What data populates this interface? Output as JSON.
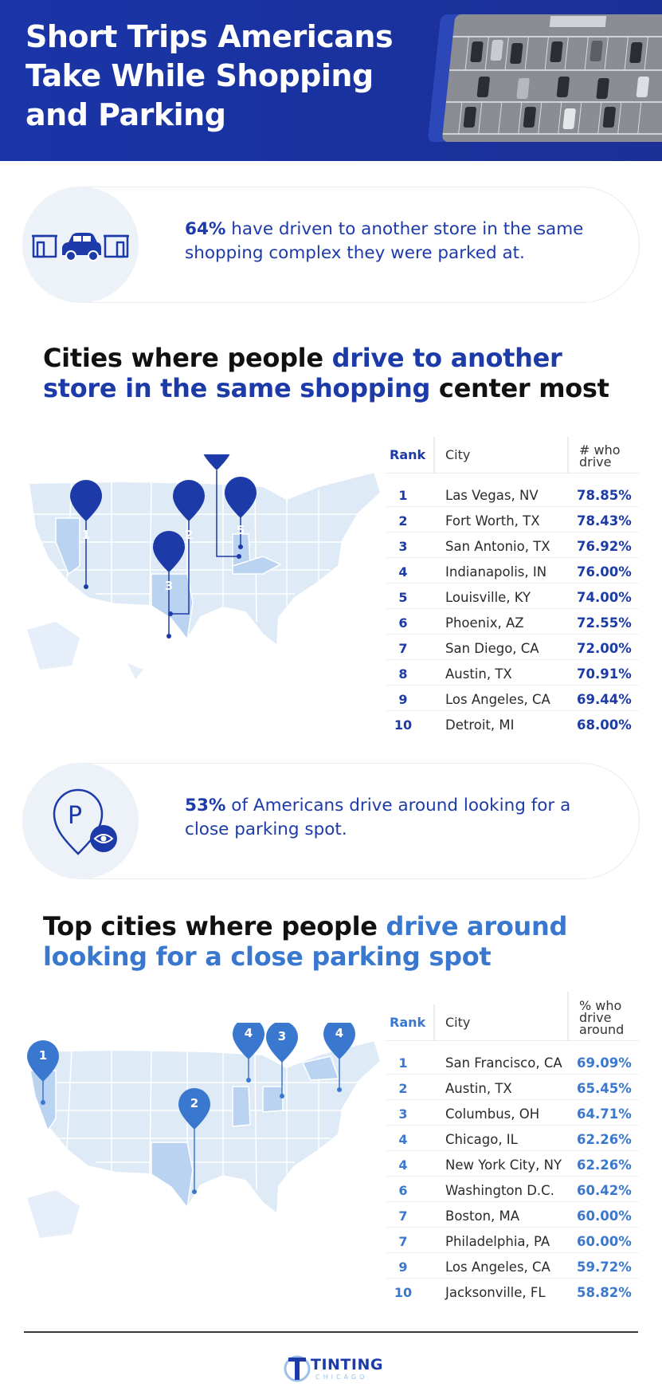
{
  "header": {
    "title": "Short Trips Americans Take While Shopping and Parking"
  },
  "stat1": {
    "icon": "car-between-stores-icon",
    "highlight": "64%",
    "text": " have driven to another store in the same shopping complex they were parked at."
  },
  "section1": {
    "title_pre": "Cities where people ",
    "title_highlight": "drive to another store in the same shopping",
    "title_post": " center most",
    "headers": {
      "rank": "Rank",
      "city": "City",
      "value": "# who drive"
    },
    "map_pins": [
      "1",
      "2",
      "3",
      "4",
      "5"
    ],
    "rows": [
      {
        "rank": "1",
        "city": "Las Vegas, NV",
        "value": "78.85%"
      },
      {
        "rank": "2",
        "city": "Fort Worth, TX",
        "value": "78.43%"
      },
      {
        "rank": "3",
        "city": "San Antonio, TX",
        "value": "76.92%"
      },
      {
        "rank": "4",
        "city": "Indianapolis, IN",
        "value": "76.00%"
      },
      {
        "rank": "5",
        "city": "Louisville, KY",
        "value": "74.00%"
      },
      {
        "rank": "6",
        "city": "Phoenix, AZ",
        "value": "72.55%"
      },
      {
        "rank": "7",
        "city": "San Diego, CA",
        "value": "72.00%"
      },
      {
        "rank": "8",
        "city": "Austin, TX",
        "value": "70.91%"
      },
      {
        "rank": "9",
        "city": "Los Angeles, CA",
        "value": "69.44%"
      },
      {
        "rank": "10",
        "city": "Detroit, MI",
        "value": "68.00%"
      }
    ]
  },
  "stat2": {
    "icon": "parking-pin-eye-icon",
    "highlight": "53%",
    "text": " of Americans drive around looking for a close parking spot."
  },
  "section2": {
    "title_pre": "Top cities where people ",
    "title_highlight": "drive around looking for a close parking spot",
    "title_post": "",
    "headers": {
      "rank": "Rank",
      "city": "City",
      "value": "% who drive around"
    },
    "map_pins": [
      "1",
      "2",
      "4",
      "3",
      "4"
    ],
    "rows": [
      {
        "rank": "1",
        "city": "San Francisco, CA",
        "value": "69.09%"
      },
      {
        "rank": "2",
        "city": "Austin, TX",
        "value": "65.45%"
      },
      {
        "rank": "3",
        "city": "Columbus, OH",
        "value": "64.71%"
      },
      {
        "rank": "4",
        "city": "Chicago, IL",
        "value": "62.26%"
      },
      {
        "rank": "4",
        "city": "New York City, NY",
        "value": "62.26%"
      },
      {
        "rank": "6",
        "city": "Washington D.C.",
        "value": "60.42%"
      },
      {
        "rank": "7",
        "city": "Boston, MA",
        "value": "60.00%"
      },
      {
        "rank": "7",
        "city": "Philadelphia, PA",
        "value": "60.00%"
      },
      {
        "rank": "9",
        "city": "Los Angeles, CA",
        "value": "59.72%"
      },
      {
        "rank": "10",
        "city": "Jacksonville, FL",
        "value": "58.82%"
      }
    ]
  },
  "footer": {
    "brand_name": "TINTING",
    "brand_sub": "CHICAGO",
    "logo_icon": "tinting-chicago-logo-icon"
  },
  "colors": {
    "brand_dark": "#1d3ba8",
    "brand_light": "#3a78cf",
    "map_fill": "#dfeaf7",
    "map_highlight": "#b9d3f0"
  }
}
